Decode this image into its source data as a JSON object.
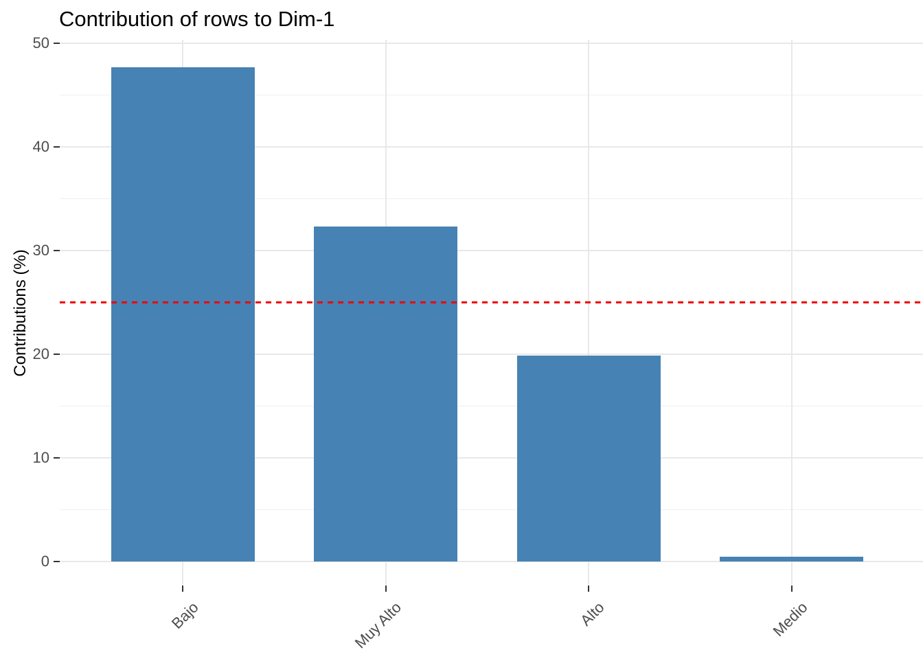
{
  "chart_data": {
    "type": "bar",
    "title": "Contribution of rows to Dim-1",
    "xlabel": "",
    "ylabel": "Contributions (%)",
    "categories": [
      "Bajo",
      "Muy Alto",
      "Alto",
      "Medio"
    ],
    "values": [
      47.7,
      32.3,
      19.9,
      0.45
    ],
    "ylim": [
      0,
      50
    ],
    "y_major_ticks": [
      0,
      10,
      20,
      30,
      40,
      50
    ],
    "y_minor_ticks": [
      5,
      15,
      25,
      35,
      45
    ],
    "y_tick_labels": [
      "0",
      "10",
      "20",
      "30",
      "40",
      "50"
    ],
    "x_tick_angle_deg": 45,
    "grid": true,
    "legend": "none",
    "bar_color": "#4682B4",
    "tick_label_color": "#4d4d4d",
    "reference_line": {
      "value": 25,
      "style": "dashed",
      "color": "#ee0000"
    }
  }
}
